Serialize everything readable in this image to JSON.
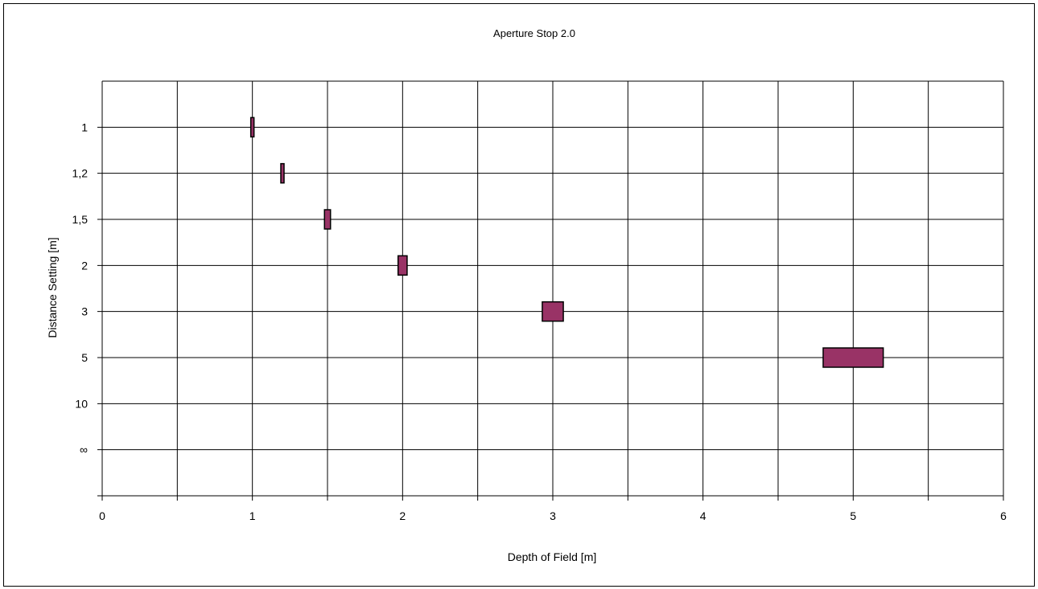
{
  "chart_data": {
    "type": "floating-bar",
    "title": "Aperture Stop 2.0",
    "xlabel": "Depth of Field [m]",
    "ylabel": "Distance Setting [m]",
    "xlim": [
      0,
      6
    ],
    "x_ticks": [
      "0",
      "1",
      "2",
      "3",
      "4",
      "5",
      "6"
    ],
    "x_gridlines_every": 0.5,
    "y_categories": [
      "1",
      "1,2",
      "1,5",
      "2",
      "3",
      "5",
      "10",
      "∞"
    ],
    "grid": true,
    "legend": "none",
    "bar_color": "#993366",
    "series": [
      {
        "category": "1",
        "center": 1.0,
        "near": 0.99,
        "far": 1.01
      },
      {
        "category": "1,2",
        "center": 1.2,
        "near": 1.19,
        "far": 1.21
      },
      {
        "category": "1,5",
        "center": 1.5,
        "near": 1.48,
        "far": 1.52
      },
      {
        "category": "2",
        "center": 2.0,
        "near": 1.97,
        "far": 2.03
      },
      {
        "category": "3",
        "center": 3.0,
        "near": 2.93,
        "far": 3.07
      },
      {
        "category": "5",
        "center": 5.0,
        "near": 4.8,
        "far": 5.2
      }
    ]
  }
}
